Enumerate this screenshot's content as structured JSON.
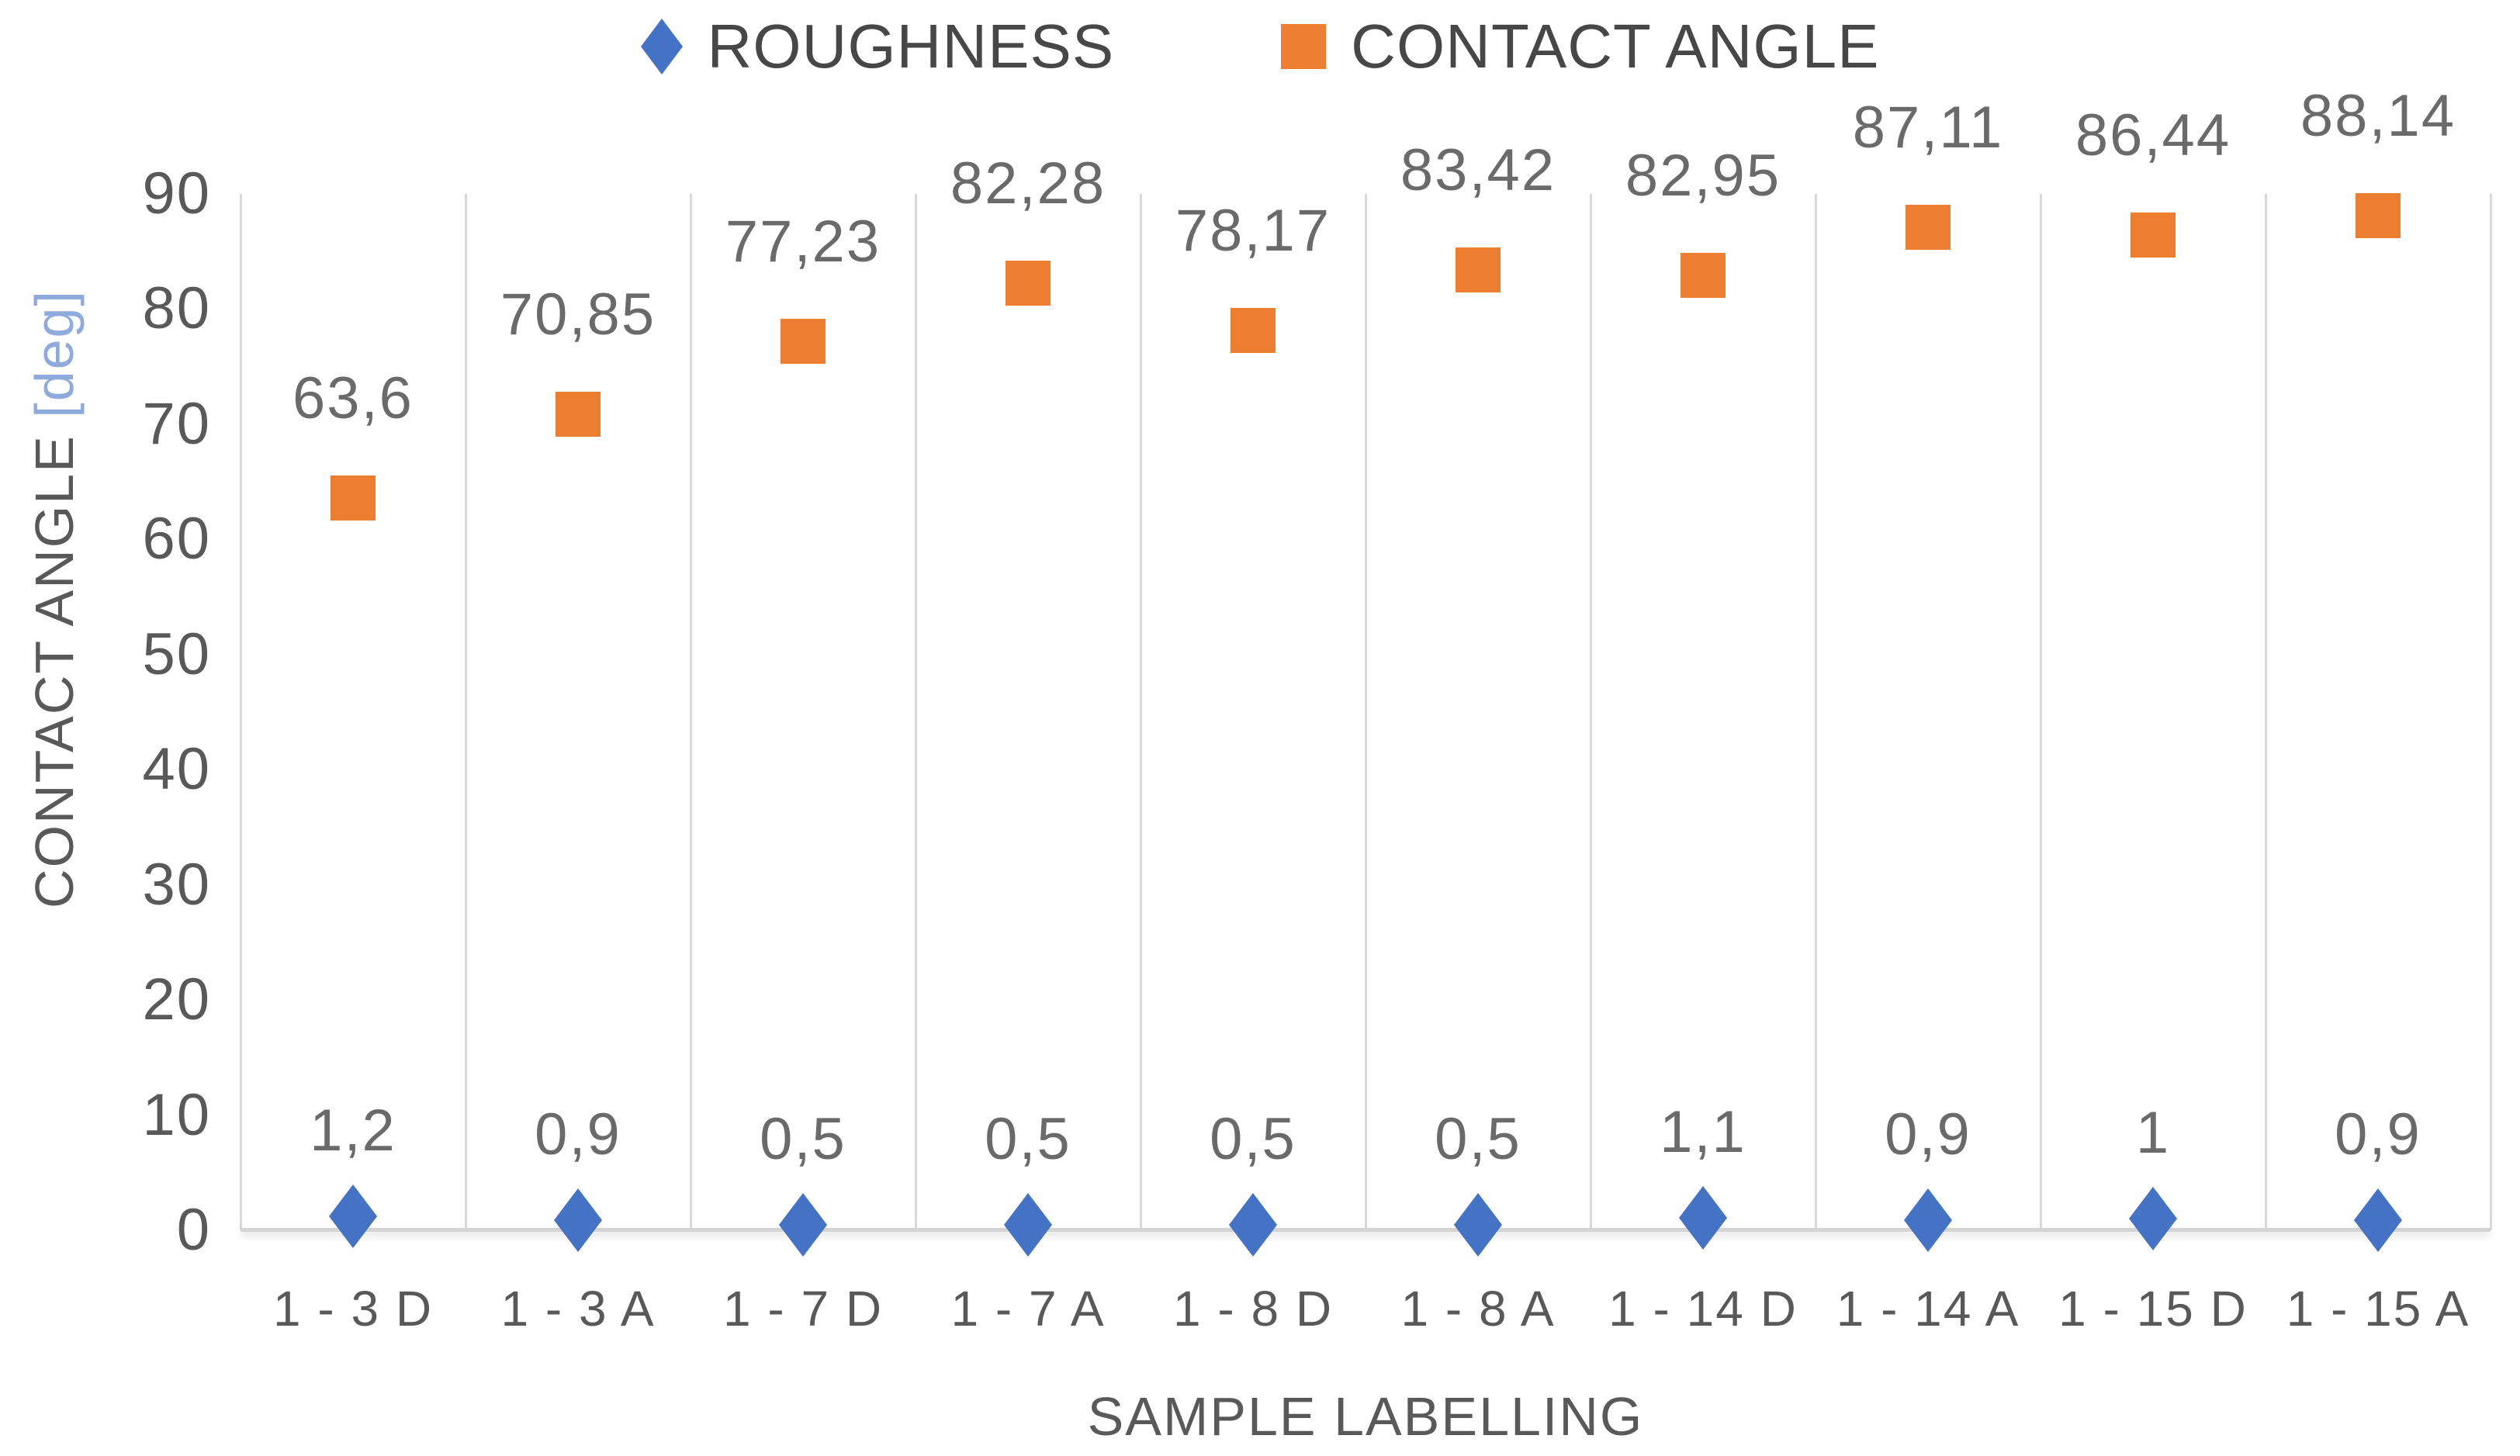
{
  "legend": {
    "position": "top-center",
    "items": [
      {
        "label": "ROUGHNESS",
        "marker": "diamond",
        "color": "#4472C4"
      },
      {
        "label": "CONTACT ANGLE",
        "marker": "square",
        "color": "#ED7D31"
      }
    ]
  },
  "axes": {
    "x_title": "SAMPLE LABELLING",
    "y_title_main": "CONTACT ANGLE ",
    "y_title_unit": "[deg]",
    "y_title_unit_color": "#8FAADC"
  },
  "chart_data": {
    "type": "scatter",
    "title": "",
    "xlabel": "SAMPLE LABELLING",
    "ylabel": "CONTACT ANGLE [deg]",
    "ylim": [
      0,
      90
    ],
    "ytick_step": 10,
    "yticks": [
      "0",
      "10",
      "20",
      "30",
      "40",
      "50",
      "60",
      "70",
      "80",
      "90"
    ],
    "grid": "vertical-category-separators-only",
    "legend_position": "top-center",
    "decimal_separator": ",",
    "categories": [
      "1 - 3 D",
      "1 - 3 A",
      "1 - 7 D",
      "1 - 7 A",
      "1 - 8 D",
      "1 - 8 A",
      "1 - 14 D",
      "1 - 14 A",
      "1 - 15 D",
      "1 - 15 A"
    ],
    "series": [
      {
        "name": "ROUGHNESS",
        "marker": "diamond",
        "color": "#4472C4",
        "values": [
          1.2,
          0.9,
          0.5,
          0.5,
          0.5,
          0.5,
          1.1,
          0.9,
          1,
          0.9
        ],
        "labels": [
          "1,2",
          "0,9",
          "0,5",
          "0,5",
          "0,5",
          "0,5",
          "1,1",
          "0,9",
          "1",
          "0,9"
        ]
      },
      {
        "name": "CONTACT ANGLE",
        "marker": "square",
        "color": "#ED7D31",
        "values": [
          63.6,
          70.85,
          77.23,
          82.28,
          78.17,
          83.42,
          82.95,
          87.11,
          86.44,
          88.14
        ],
        "labels": [
          "63,6",
          "70,85",
          "77,23",
          "82,28",
          "78,17",
          "83,42",
          "82,95",
          "87,11",
          "86,44",
          "88,14"
        ]
      }
    ]
  },
  "colors": {
    "roughness_blue": "#4472C4",
    "contact_angle_orange": "#ED7D31",
    "gridline": "#D9D9D9",
    "tick_text": "#595959",
    "data_label_text": "#6a6a6a"
  }
}
